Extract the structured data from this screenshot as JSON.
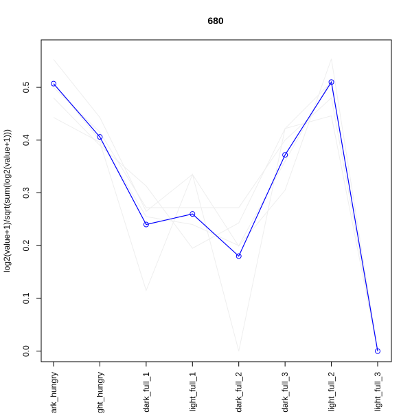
{
  "chart_data": {
    "type": "line",
    "title": "680",
    "xlabel": "",
    "ylabel": "log2(value+1)/sqrt(sum(log2(value+1)))",
    "categories": [
      "dark_hungry",
      "light_hungry",
      "dark_full_1",
      "light_full_1",
      "dark_full_2",
      "dark_full_3",
      "light_full_2",
      "light_full_3"
    ],
    "ylim": [
      -0.02,
      0.59
    ],
    "yticks": [
      0.0,
      0.1,
      0.2,
      0.3,
      0.4,
      0.5
    ],
    "ytick_labels": [
      "0.0",
      "0.1",
      "0.2",
      "0.3",
      "0.4",
      "0.5"
    ],
    "grid": false,
    "series": [
      {
        "values": [
          0.507,
          0.406,
          0.24,
          0.26,
          0.18,
          0.372,
          0.51,
          0.0
        ],
        "color": "#0000ff",
        "marker": "circle"
      }
    ],
    "background_series": [
      {
        "values": [
          0.553,
          0.443,
          0.265,
          0.335,
          0.199,
          0.305,
          0.554,
          0.0
        ],
        "color": "#eeeeee"
      },
      {
        "values": [
          0.443,
          0.396,
          0.115,
          0.335,
          0.0,
          0.422,
          0.446,
          0.0
        ],
        "color": "#eeeeee"
      },
      {
        "values": [
          0.48,
          0.39,
          0.313,
          0.195,
          0.243,
          0.422,
          0.51,
          0.0
        ],
        "color": "#eeeeee"
      },
      {
        "values": [
          0.5,
          0.415,
          0.272,
          0.272,
          0.272,
          0.4,
          0.48,
          0.0
        ],
        "color": "#eeeeee"
      },
      {
        "values": [
          0.507,
          0.4,
          0.255,
          0.24,
          0.2,
          0.36,
          0.515,
          0.0
        ],
        "color": "#eeeeee"
      }
    ]
  }
}
